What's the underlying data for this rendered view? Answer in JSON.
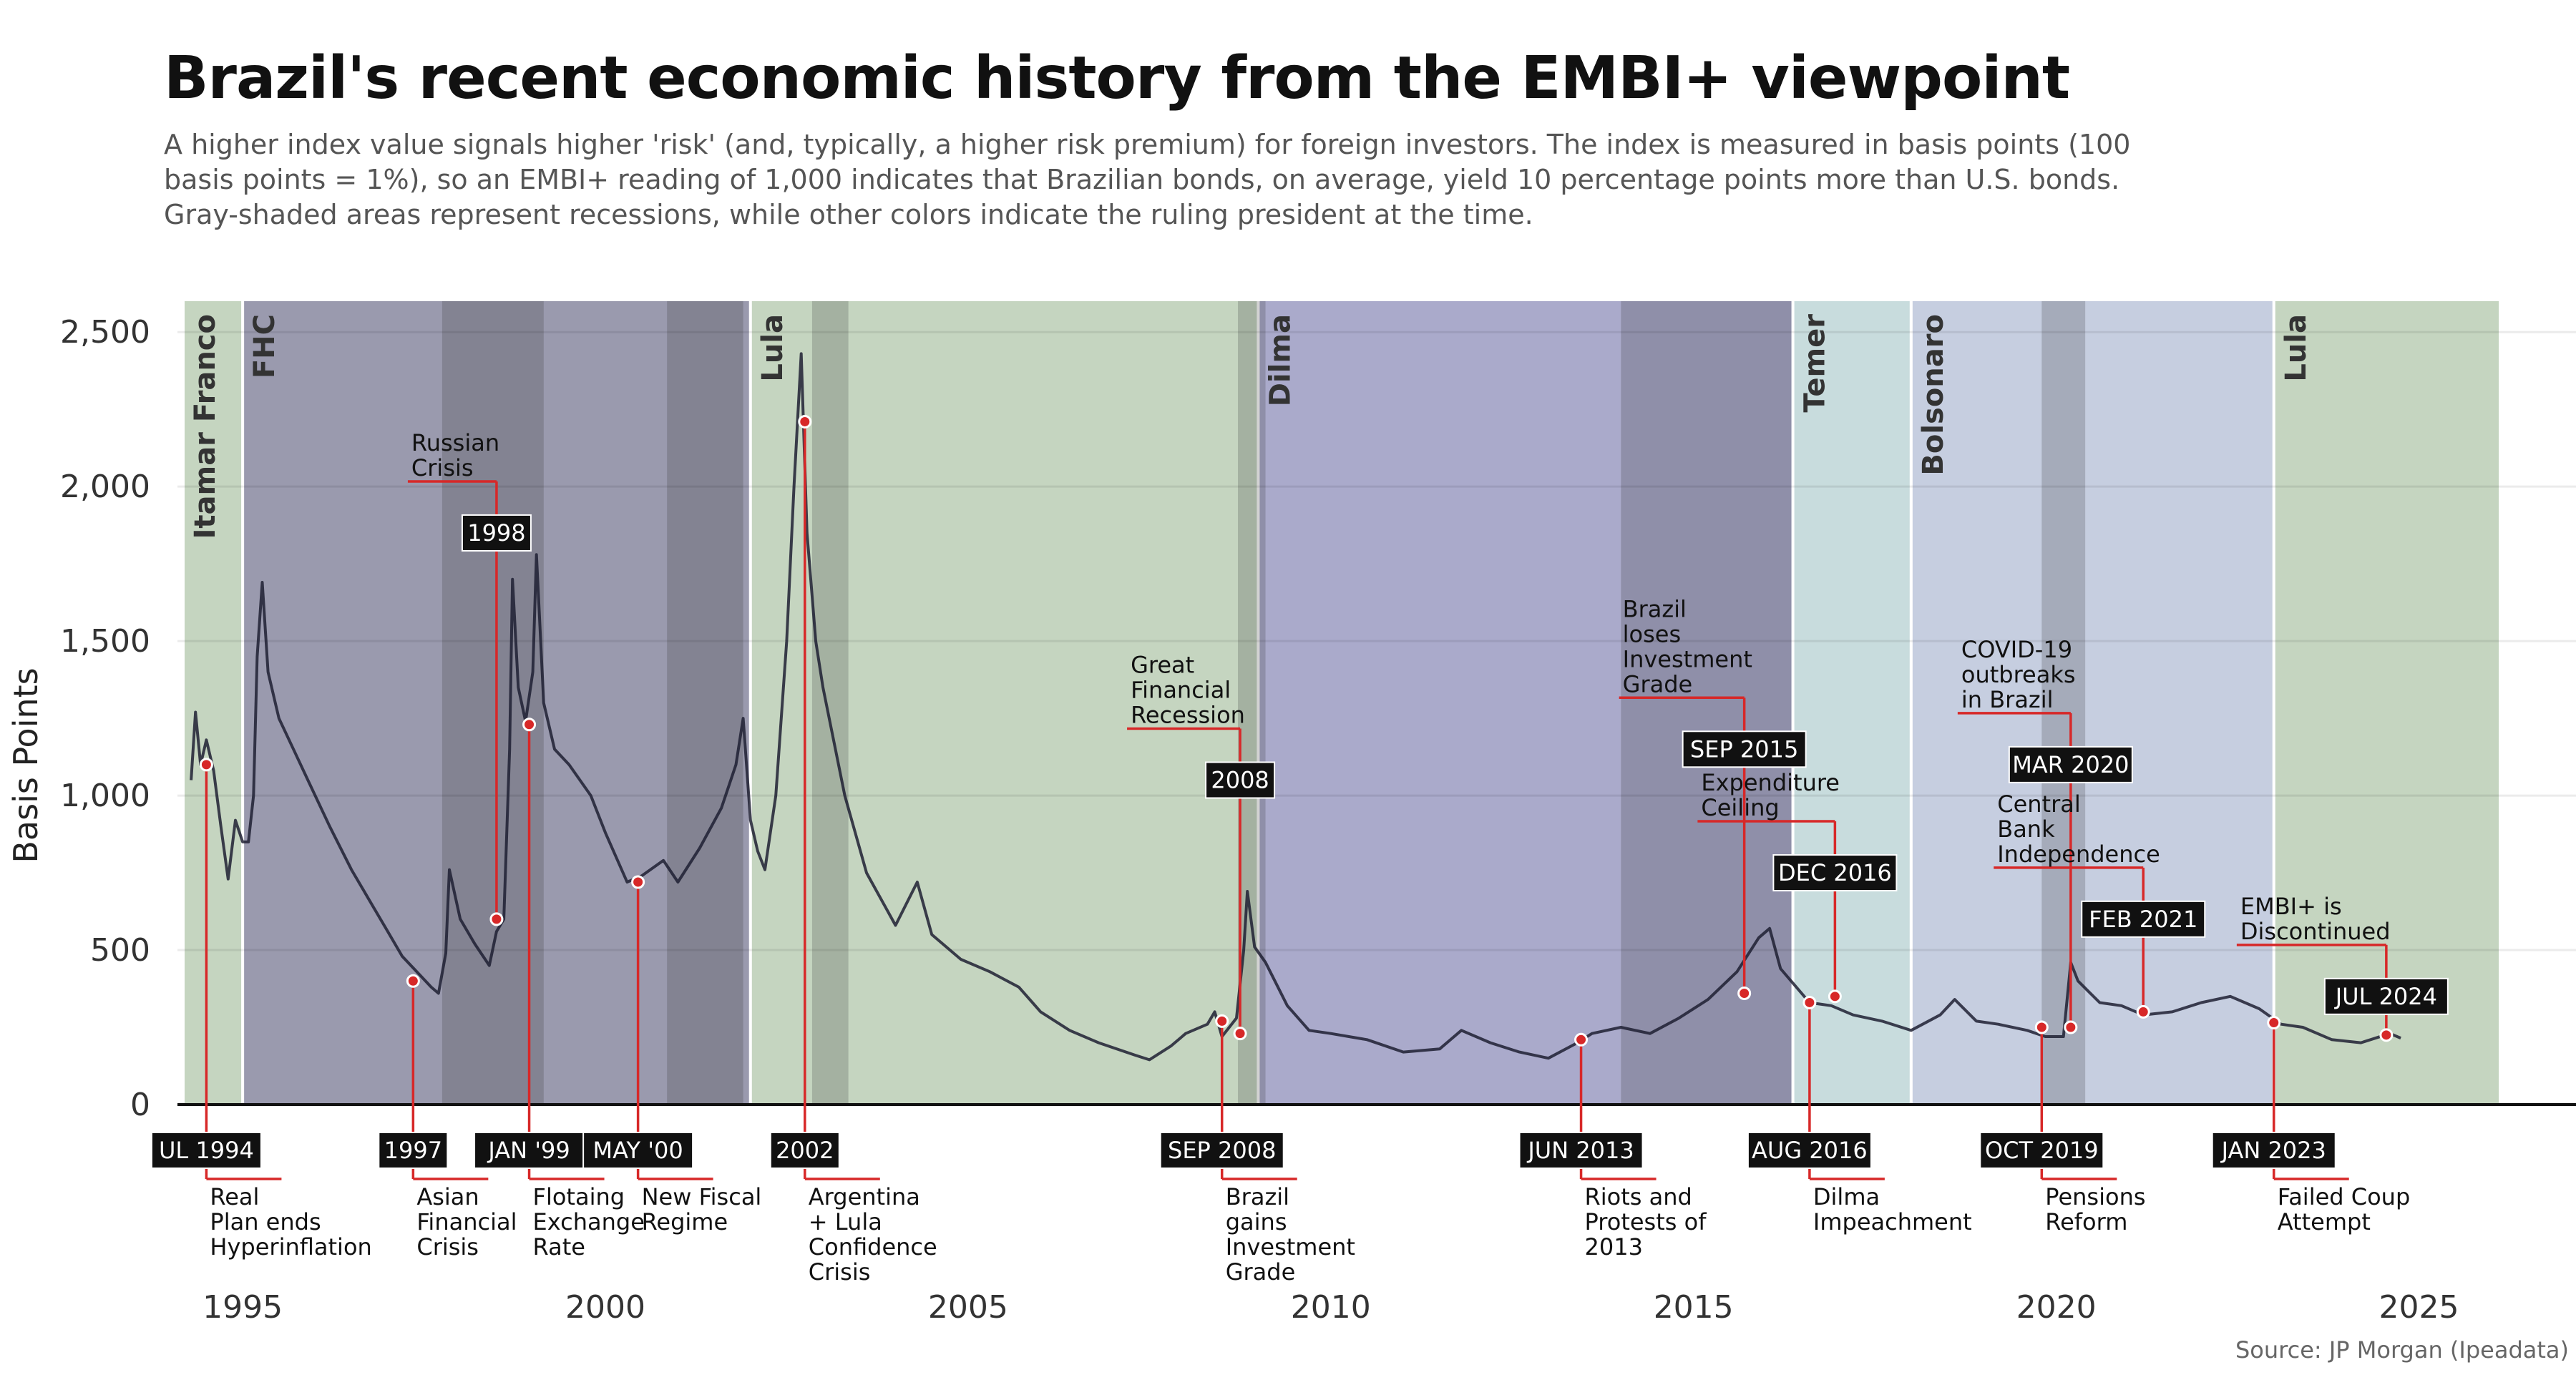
{
  "title": "Brazil's recent economic history from the EMBI+ viewpoint",
  "subtitle": "A higher index value signals higher 'risk' (and, typically, a higher risk premium) for foreign investors. The index is measured in basis points (100 basis points = 1%), so an EMBI+ reading of 1,000 indicates that Brazilian bonds, on average, yield 10 percentage points more than U.S. bonds. Gray-shaded areas represent recessions, while other colors indicate the ruling president at the time.",
  "source": "Source: JP Morgan (Ipeadata)",
  "chart_data": {
    "type": "line",
    "ylabel": "Basis Points",
    "xlim": [
      1994.2,
      2026.1
    ],
    "ylim": [
      0,
      2600
    ],
    "y_ticks": [
      0,
      500,
      1000,
      1500,
      2000,
      2500
    ],
    "y_tick_labels": [
      "0",
      "500",
      "1,000",
      "1,500",
      "2,000",
      "2,500"
    ],
    "x_ticks": [
      1995,
      2000,
      2005,
      2010,
      2015,
      2020,
      2025
    ],
    "x_tick_labels": [
      "1995",
      "2000",
      "2005",
      "2010",
      "2015",
      "2020",
      "2025"
    ],
    "grid": true,
    "line_color": "#1f2033",
    "series": [
      {
        "values": [
          [
            1994.29,
            1050
          ],
          [
            1994.35,
            1270
          ],
          [
            1994.42,
            1100
          ],
          [
            1994.5,
            1180
          ],
          [
            1994.6,
            1080
          ],
          [
            1994.7,
            900
          ],
          [
            1994.8,
            730
          ],
          [
            1994.9,
            920
          ],
          [
            1995.0,
            850
          ],
          [
            1995.08,
            850
          ],
          [
            1995.15,
            1000
          ],
          [
            1995.2,
            1450
          ],
          [
            1995.27,
            1690
          ],
          [
            1995.35,
            1400
          ],
          [
            1995.5,
            1250
          ],
          [
            1995.7,
            1150
          ],
          [
            1995.9,
            1050
          ],
          [
            1996.2,
            900
          ],
          [
            1996.5,
            760
          ],
          [
            1996.8,
            640
          ],
          [
            1997.0,
            560
          ],
          [
            1997.2,
            480
          ],
          [
            1997.4,
            430
          ],
          [
            1997.6,
            380
          ],
          [
            1997.7,
            360
          ],
          [
            1997.8,
            490
          ],
          [
            1997.85,
            760
          ],
          [
            1998.0,
            600
          ],
          [
            1998.2,
            520
          ],
          [
            1998.4,
            450
          ],
          [
            1998.5,
            560
          ],
          [
            1998.6,
            600
          ],
          [
            1998.68,
            1150
          ],
          [
            1998.72,
            1700
          ],
          [
            1998.8,
            1350
          ],
          [
            1998.9,
            1240
          ],
          [
            1999.0,
            1400
          ],
          [
            1999.05,
            1780
          ],
          [
            1999.15,
            1300
          ],
          [
            1999.3,
            1150
          ],
          [
            1999.5,
            1100
          ],
          [
            1999.8,
            1000
          ],
          [
            2000.0,
            880
          ],
          [
            2000.3,
            720
          ],
          [
            2000.5,
            740
          ],
          [
            2000.8,
            790
          ],
          [
            2001.0,
            720
          ],
          [
            2001.3,
            830
          ],
          [
            2001.6,
            960
          ],
          [
            2001.8,
            1100
          ],
          [
            2001.9,
            1250
          ],
          [
            2002.0,
            920
          ],
          [
            2002.1,
            820
          ],
          [
            2002.2,
            760
          ],
          [
            2002.35,
            1000
          ],
          [
            2002.5,
            1500
          ],
          [
            2002.6,
            2000
          ],
          [
            2002.7,
            2430
          ],
          [
            2002.78,
            1850
          ],
          [
            2002.9,
            1500
          ],
          [
            2003.0,
            1350
          ],
          [
            2003.3,
            1000
          ],
          [
            2003.6,
            750
          ],
          [
            2004.0,
            580
          ],
          [
            2004.3,
            720
          ],
          [
            2004.5,
            550
          ],
          [
            2004.9,
            470
          ],
          [
            2005.3,
            430
          ],
          [
            2005.7,
            380
          ],
          [
            2006.0,
            300
          ],
          [
            2006.4,
            240
          ],
          [
            2006.8,
            200
          ],
          [
            2007.3,
            160
          ],
          [
            2007.5,
            145
          ],
          [
            2007.8,
            190
          ],
          [
            2008.0,
            230
          ],
          [
            2008.3,
            260
          ],
          [
            2008.4,
            300
          ],
          [
            2008.5,
            220
          ],
          [
            2008.7,
            280
          ],
          [
            2008.8,
            500
          ],
          [
            2008.85,
            690
          ],
          [
            2008.95,
            510
          ],
          [
            2009.1,
            460
          ],
          [
            2009.4,
            320
          ],
          [
            2009.7,
            240
          ],
          [
            2010.0,
            230
          ],
          [
            2010.5,
            210
          ],
          [
            2011.0,
            170
          ],
          [
            2011.5,
            180
          ],
          [
            2011.8,
            240
          ],
          [
            2012.2,
            200
          ],
          [
            2012.6,
            170
          ],
          [
            2013.0,
            150
          ],
          [
            2013.4,
            200
          ],
          [
            2013.6,
            230
          ],
          [
            2014.0,
            250
          ],
          [
            2014.4,
            230
          ],
          [
            2014.8,
            280
          ],
          [
            2015.2,
            340
          ],
          [
            2015.6,
            430
          ],
          [
            2015.9,
            540
          ],
          [
            2016.05,
            570
          ],
          [
            2016.2,
            440
          ],
          [
            2016.6,
            330
          ],
          [
            2016.9,
            320
          ],
          [
            2017.2,
            290
          ],
          [
            2017.6,
            270
          ],
          [
            2018.0,
            240
          ],
          [
            2018.4,
            290
          ],
          [
            2018.6,
            340
          ],
          [
            2018.9,
            270
          ],
          [
            2019.2,
            260
          ],
          [
            2019.6,
            240
          ],
          [
            2019.85,
            220
          ],
          [
            2020.1,
            220
          ],
          [
            2020.2,
            460
          ],
          [
            2020.3,
            400
          ],
          [
            2020.6,
            330
          ],
          [
            2020.9,
            320
          ],
          [
            2021.2,
            290
          ],
          [
            2021.6,
            300
          ],
          [
            2022.0,
            330
          ],
          [
            2022.4,
            350
          ],
          [
            2022.8,
            310
          ],
          [
            2023.1,
            260
          ],
          [
            2023.4,
            250
          ],
          [
            2023.8,
            210
          ],
          [
            2024.2,
            200
          ],
          [
            2024.6,
            230
          ],
          [
            2024.75,
            215
          ]
        ]
      }
    ],
    "regions": [
      {
        "label": "Itamar Franco",
        "start": 1994.2,
        "end": 1994.98,
        "color": "#c5d5c0"
      },
      {
        "label": "FHC",
        "start": 1995.02,
        "end": 2001.98,
        "color": "#9a9aae"
      },
      {
        "label": "Lula",
        "start": 2002.02,
        "end": 2008.98,
        "color": "#c5d5c0"
      },
      {
        "label": "Dilma",
        "start": 2009.02,
        "end": 2016.35,
        "color": "#aaaacb"
      },
      {
        "label": "Temer",
        "start": 2016.39,
        "end": 2017.98,
        "color": "#c8dcdd"
      },
      {
        "label": "Bolsonaro",
        "start": 2018.02,
        "end": 2022.98,
        "color": "#c6cee0"
      },
      {
        "label": "Lula",
        "start": 2023.02,
        "end": 2026.1,
        "color": "#c5d5c0"
      }
    ],
    "recessions": [
      [
        1997.75,
        1999.15
      ],
      [
        2000.85,
        2001.9
      ],
      [
        2002.85,
        2003.35
      ],
      [
        2008.72,
        2009.1
      ],
      [
        2014.0,
        2016.35
      ],
      [
        2019.8,
        2020.4
      ]
    ],
    "events": [
      {
        "date": "UL 1994",
        "x": 1994.5,
        "y": 1100,
        "badge_y": 800,
        "text": [
          "Real",
          "Plan ends",
          "Hyperinflation"
        ],
        "side": "below"
      },
      {
        "date": "1997",
        "x": 1997.35,
        "y": 400,
        "badge_y": 800,
        "text": [
          "Asian",
          "Financial",
          "Crisis"
        ],
        "side": "below"
      },
      {
        "date": "1998",
        "x": 1998.5,
        "y": 600,
        "badge_y": 1850,
        "text": [
          "Russian",
          "Crisis"
        ],
        "side": "above"
      },
      {
        "date": "JAN '99",
        "x": 1998.95,
        "y": 1230,
        "badge_y": 800,
        "text": [
          "Flotaing",
          "Exchange",
          "Rate"
        ],
        "side": "below"
      },
      {
        "date": "MAY '00",
        "x": 2000.45,
        "y": 720,
        "badge_y": 800,
        "text": [
          "New Fiscal",
          "Regime"
        ],
        "side": "below"
      },
      {
        "date": "2002",
        "x": 2002.75,
        "y": 2210,
        "badge_y": 800,
        "text": [
          "Argentina",
          "+ Lula",
          "Confidence",
          "Crisis"
        ],
        "side": "below"
      },
      {
        "date": "SEP 2008",
        "x": 2008.5,
        "y": 270,
        "badge_y": 800,
        "text": [
          "Brazil",
          "gains",
          "Investment",
          "Grade"
        ],
        "side": "below"
      },
      {
        "date": "2008",
        "x": 2008.75,
        "y": 230,
        "badge_y": 1050,
        "text": [
          "Great",
          "Financial",
          "Recession"
        ],
        "side": "above"
      },
      {
        "date": "JUN 2013",
        "x": 2013.45,
        "y": 210,
        "badge_y": 800,
        "text": [
          "Riots and",
          "Protests of",
          "2013"
        ],
        "side": "below"
      },
      {
        "date": "SEP 2015",
        "x": 2015.7,
        "y": 360,
        "badge_y": 1150,
        "text": [
          "Brazil",
          "loses",
          "Investment",
          "Grade"
        ],
        "side": "above"
      },
      {
        "date": "AUG 2016",
        "x": 2016.6,
        "y": 330,
        "badge_y": 800,
        "text": [
          "Dilma",
          "Impeachment"
        ],
        "side": "below"
      },
      {
        "date": "DEC 2016",
        "x": 2016.95,
        "y": 350,
        "badge_y": 750,
        "text": [
          "Expenditure",
          "Ceiling"
        ],
        "side": "above"
      },
      {
        "date": "OCT 2019",
        "x": 2019.8,
        "y": 250,
        "badge_y": 800,
        "text": [
          "Pensions",
          "Reform"
        ],
        "side": "below"
      },
      {
        "date": "MAR 2020",
        "x": 2020.2,
        "y": 250,
        "badge_y": 1100,
        "text": [
          "COVID-19",
          "outbreaks",
          "in Brazil"
        ],
        "side": "above"
      },
      {
        "date": "FEB 2021",
        "x": 2021.2,
        "y": 300,
        "badge_y": 600,
        "text": [
          "Central",
          "Bank",
          "Independence"
        ],
        "side": "above"
      },
      {
        "date": "JAN 2023",
        "x": 2023.0,
        "y": 265,
        "badge_y": 800,
        "text": [
          "Failed Coup",
          "Attempt"
        ],
        "side": "below"
      },
      {
        "date": "JUL 2024",
        "x": 2024.55,
        "y": 225,
        "badge_y": 350,
        "text": [
          "EMBI+ is",
          "Discontinued"
        ],
        "side": "above"
      }
    ]
  }
}
